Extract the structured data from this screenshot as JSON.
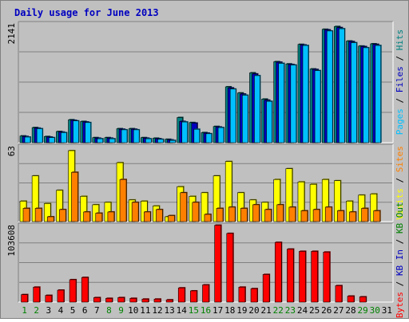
{
  "chart_data": {
    "type": "bar",
    "title": "Daily usage for June 2013",
    "categories": [
      "1",
      "2",
      "3",
      "4",
      "5",
      "6",
      "7",
      "8",
      "9",
      "10",
      "11",
      "12",
      "13",
      "14",
      "15",
      "16",
      "17",
      "18",
      "19",
      "20",
      "21",
      "22",
      "23",
      "24",
      "25",
      "26",
      "27",
      "28",
      "29",
      "30",
      "31"
    ],
    "weekend_days": [
      "1",
      "2",
      "8",
      "9",
      "15",
      "16",
      "22",
      "23",
      "29",
      "30"
    ],
    "panels": [
      {
        "id": "hits",
        "ymax_label": "2141",
        "ylim": [
          0,
          2141
        ],
        "side_label": [
          {
            "text": "Pages",
            "color": "#00c0ff"
          },
          {
            "text": " / ",
            "color": "#000000"
          },
          {
            "text": "Files",
            "color": "#0000c0"
          },
          {
            "text": " / ",
            "color": "#000000"
          },
          {
            "text": "Hits",
            "color": "#008080"
          }
        ],
        "series": [
          {
            "name": "Hits",
            "color": "#008080",
            "values": [
              120,
              270,
              110,
              200,
              410,
              380,
              90,
              90,
              250,
              250,
              90,
              80,
              60,
              450,
              360,
              180,
              290,
              1000,
              890,
              1250,
              780,
              1450,
              1410,
              1760,
              1320,
              2030,
              2080,
              1820,
              1730,
              1770,
              null
            ]
          },
          {
            "name": "Files",
            "color": "#0000c0",
            "values": [
              110,
              260,
              100,
              190,
              400,
              370,
              80,
              80,
              240,
              240,
              80,
              70,
              50,
              380,
              350,
              170,
              280,
              980,
              870,
              1230,
              760,
              1440,
              1400,
              1750,
              1310,
              2020,
              2060,
              1810,
              1720,
              1760,
              null
            ]
          },
          {
            "name": "Pages",
            "color": "#00c0ff",
            "values": [
              100,
              250,
              90,
              180,
              390,
              360,
              70,
              70,
              230,
              230,
              70,
              60,
              40,
              370,
              240,
              160,
              270,
              960,
              850,
              1200,
              740,
              1420,
              1390,
              1740,
              1290,
              2000,
              2040,
              1790,
              1700,
              1740,
              null
            ]
          }
        ]
      },
      {
        "id": "visits",
        "ymax_label": "63",
        "ylim": [
          0,
          63
        ],
        "side_label": [
          {
            "text": "Visits",
            "color": "#ffff00"
          },
          {
            "text": " / ",
            "color": "#000000"
          },
          {
            "text": "Sites",
            "color": "#ff8000"
          }
        ],
        "series": [
          {
            "name": "Visits",
            "color": "#ffff00",
            "values": [
              17,
              38,
              15,
              26,
              59,
              21,
              14,
              16,
              49,
              18,
              17,
              13,
              4,
              29,
              21,
              24,
              38,
              50,
              24,
              18,
              16,
              35,
              44,
              33,
              31,
              35,
              34,
              17,
              22,
              23,
              null
            ]
          },
          {
            "name": "Sites",
            "color": "#ff8000",
            "values": [
              11,
              11,
              4,
              10,
              41,
              8,
              7,
              8,
              35,
              16,
              8,
              10,
              5,
              24,
              16,
              6,
              11,
              12,
              11,
              14,
              10,
              14,
              12,
              9,
              10,
              12,
              9,
              8,
              11,
              9,
              null
            ]
          }
        ]
      },
      {
        "id": "kbytes",
        "ymax_label": "103608",
        "ylim": [
          0,
          103608
        ],
        "side_label": [
          {
            "text": "KBytes",
            "color": "#ff0000"
          },
          {
            "text": " / ",
            "color": "#000000"
          },
          {
            "text": "KB In",
            "color": "#0000c0"
          },
          {
            "text": " / ",
            "color": "#000000"
          },
          {
            "text": "KB Out",
            "color": "#008000"
          }
        ],
        "series": [
          {
            "name": "KBytes",
            "color": "#ff0000",
            "values": [
              10000,
              20000,
              9000,
              16000,
              30000,
              33000,
              6000,
              5000,
              6000,
              5000,
              4000,
              4000,
              3000,
              19000,
              15000,
              23000,
              103000,
              92000,
              20000,
              18000,
              37000,
              80000,
              71000,
              68000,
              68000,
              67000,
              22000,
              8000,
              7000,
              null,
              null
            ]
          }
        ]
      }
    ]
  }
}
